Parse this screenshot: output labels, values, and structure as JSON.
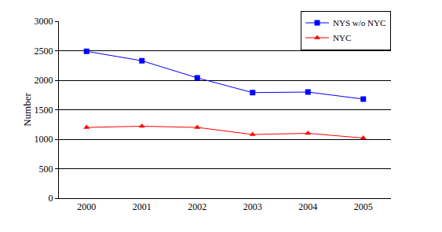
{
  "chart_data": {
    "type": "line",
    "y_label": "Number",
    "categories": [
      "2000",
      "2001",
      "2002",
      "2003",
      "2004",
      "2005"
    ],
    "series": [
      {
        "name": "NYS w/o NYC",
        "color": "#0000ff",
        "marker": "square",
        "values": [
          2490,
          2330,
          2040,
          1790,
          1800,
          1680
        ]
      },
      {
        "name": "NYC",
        "color": "#ff0000",
        "marker": "triangle",
        "values": [
          1200,
          1220,
          1200,
          1080,
          1100,
          1020
        ]
      }
    ],
    "ylim": [
      0,
      3000
    ],
    "yticks": [
      0,
      500,
      1000,
      1500,
      2000,
      2500,
      3000
    ],
    "grid": true,
    "legend": "top right"
  }
}
